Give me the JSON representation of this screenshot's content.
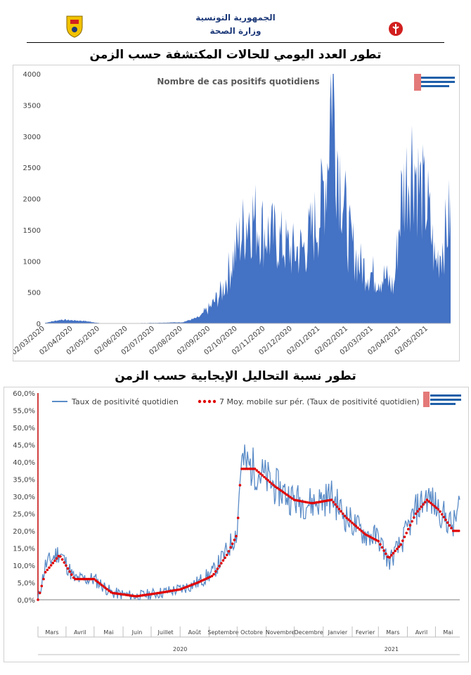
{
  "header": {
    "ministry_line1": "الجمهورية التونسية",
    "ministry_line2": "وزارة الصحة",
    "left_logo_icon": "tunisia-coat-of-arms-icon",
    "right_logo_icon": "health-ministry-logo-icon",
    "brand_color": "#d21f1f",
    "header_text_color": "#1f3b7a"
  },
  "chart1": {
    "heading": "تطور العدد اليومي للحالات المكتشفة حسب الزمن",
    "inner_title": "Nombre de cas positifs quotidiens",
    "observatory_logo": "observatoire-logo-icon",
    "color": "#4472c4",
    "yticks": [
      "4000",
      "3500",
      "3000",
      "2500",
      "2000",
      "1500",
      "1000",
      "500",
      "0"
    ],
    "xticks": [
      "02/03/2020",
      "02/04/2020",
      "02/05/2020",
      "02/06/2020",
      "02/07/2020",
      "02/08/2020",
      "02/09/2020",
      "02/10/2020",
      "02/11/2020",
      "02/12/2020",
      "02/01/2021",
      "02/02/2021",
      "02/03/2021",
      "02/04/2021",
      "02/05/2021"
    ]
  },
  "chart2": {
    "heading": "تطور نسبة التحاليل الإيجابية حسب الزمن",
    "legend_line": "Taux de positivité quotidien",
    "legend_dots": "7 Moy. mobile sur pér. (Taux de positivité quotidien)",
    "line_color": "#5b8cc7",
    "dots_color": "#e00000",
    "axis_color": "#c00000",
    "yticks": [
      "60,0%",
      "55,0%",
      "50,0%",
      "45,0%",
      "40,0%",
      "35,0%",
      "30,0%",
      "25,0%",
      "20,0%",
      "15,0%",
      "10,0%",
      "5,0%",
      "0,0%"
    ],
    "months": [
      "Mars",
      "Avril",
      "Mai",
      "Juin",
      "Juillet",
      "Août",
      "Septembre",
      "Octobre",
      "Novembre",
      "Decembre",
      "Janvier",
      "Fevrier",
      "Mars",
      "Avril",
      "Mai"
    ],
    "years": [
      "2020",
      "2021"
    ]
  },
  "chart_data": [
    {
      "type": "area",
      "title": "Nombre de cas positifs quotidiens",
      "xlabel": "",
      "ylabel": "",
      "ylim": [
        0,
        4000
      ],
      "grid": false,
      "x": [
        "2020-03-02",
        "2020-03-20",
        "2020-04-02",
        "2020-04-15",
        "2020-05-02",
        "2020-05-20",
        "2020-06-02",
        "2020-07-02",
        "2020-08-02",
        "2020-08-20",
        "2020-09-02",
        "2020-09-15",
        "2020-10-02",
        "2020-10-15",
        "2020-11-02",
        "2020-11-15",
        "2020-12-02",
        "2020-12-15",
        "2021-01-02",
        "2021-01-10",
        "2021-01-15",
        "2021-01-20",
        "2021-02-02",
        "2021-02-15",
        "2021-03-02",
        "2021-03-15",
        "2021-03-25",
        "2021-04-02",
        "2021-04-15",
        "2021-04-22",
        "2021-05-02",
        "2021-05-10",
        "2021-05-20",
        "2021-05-26"
      ],
      "series": [
        {
          "values": [
            10,
            60,
            50,
            40,
            5,
            3,
            2,
            10,
            20,
            100,
            250,
            500,
            1200,
            1700,
            1400,
            1300,
            1100,
            1150,
            1700,
            2500,
            3950,
            2800,
            1350,
            900,
            750,
            700,
            550,
            1900,
            2600,
            2100,
            1750,
            900,
            1300,
            1650
          ]
        }
      ]
    },
    {
      "type": "line",
      "title": "",
      "xlabel": "",
      "ylabel": "",
      "ylim": [
        0,
        60
      ],
      "grid": false,
      "x": [
        "2020-03-02",
        "2020-03-10",
        "2020-03-25",
        "2020-04-10",
        "2020-05-01",
        "2020-05-20",
        "2020-06-15",
        "2020-07-10",
        "2020-08-01",
        "2020-08-20",
        "2020-09-05",
        "2020-09-20",
        "2020-10-01",
        "2020-10-05",
        "2020-10-20",
        "2020-11-10",
        "2020-12-01",
        "2020-12-20",
        "2021-01-10",
        "2021-01-25",
        "2021-02-15",
        "2021-03-01",
        "2021-03-12",
        "2021-03-25",
        "2021-04-10",
        "2021-04-22",
        "2021-05-05",
        "2021-05-20",
        "2021-05-27"
      ],
      "series": [
        {
          "name": "Taux de positivité quotidien",
          "values": [
            0,
            10,
            14,
            6,
            6,
            2,
            1,
            2,
            3,
            5,
            8,
            14,
            20,
            40,
            38,
            33,
            29,
            28,
            30,
            24,
            19,
            18,
            11,
            16,
            26,
            30,
            26,
            21,
            28
          ]
        },
        {
          "name": "7 Moy. mobile sur pér. (Taux de positivité quotidien)",
          "values": [
            0,
            8,
            13,
            6,
            6,
            2,
            1,
            2,
            3,
            5,
            7,
            13,
            19,
            38,
            38,
            33,
            29,
            28,
            29,
            24,
            19,
            17,
            12,
            16,
            25,
            29,
            26,
            20,
            20
          ]
        }
      ]
    }
  ]
}
